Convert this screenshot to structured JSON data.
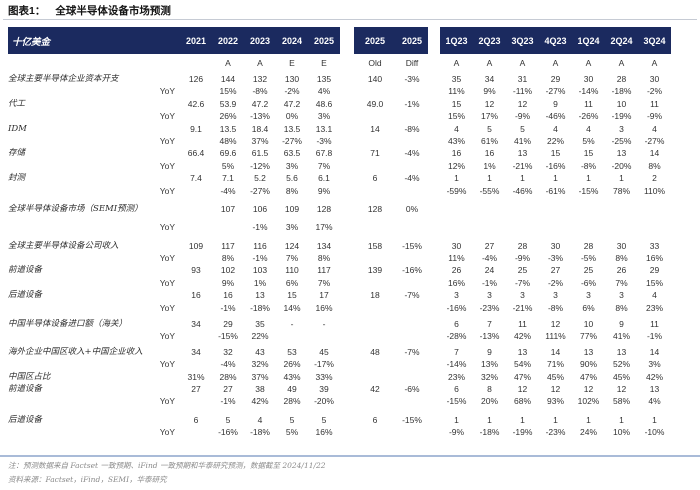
{
  "title": {
    "prefix": "图表1：",
    "text": "全球半导体设备市场预测"
  },
  "colors": {
    "navy": "#1b2a5f",
    "body_text": "#333333",
    "note_gray": "#8a8a8a",
    "rule_light": "#c6cbd4",
    "rule_blue": "#a9bbd8"
  },
  "header": {
    "unit_label": "十亿美金",
    "year_cols": [
      "2021",
      "2022",
      "2023",
      "2024",
      "2025"
    ],
    "year_sub": [
      "",
      "A",
      "A",
      "E",
      "E"
    ],
    "old_cols": [
      "2025",
      "2025"
    ],
    "old_sub": [
      "Old",
      "Diff"
    ],
    "quarter_cols": [
      "1Q23",
      "2Q23",
      "3Q23",
      "4Q23",
      "1Q24",
      "2Q24",
      "3Q24"
    ],
    "quarter_sub": [
      "A",
      "A",
      "A",
      "A",
      "A",
      "A",
      "A"
    ]
  },
  "rows": [
    {
      "label": "全球主要半导体企业资本开支",
      "yoy": false,
      "mt": 0,
      "y": [
        "126",
        "144",
        "132",
        "130",
        "135"
      ],
      "od": [
        "140",
        "-3%"
      ],
      "q": [
        "35",
        "34",
        "31",
        "29",
        "30",
        "28",
        "30"
      ]
    },
    {
      "label": "YoY",
      "yoy": true,
      "mt": 0,
      "y": [
        "",
        "15%",
        "-8%",
        "-2%",
        "4%"
      ],
      "od": [
        "",
        ""
      ],
      "q": [
        "11%",
        "9%",
        "-11%",
        "-27%",
        "-14%",
        "-18%",
        "-2%"
      ]
    },
    {
      "label": "代工",
      "yoy": false,
      "mt": 0,
      "y": [
        "42.6",
        "53.9",
        "47.2",
        "47.2",
        "48.6"
      ],
      "od": [
        "49.0",
        "-1%"
      ],
      "q": [
        "15",
        "12",
        "12",
        "9",
        "11",
        "10",
        "11"
      ]
    },
    {
      "label": "YoY",
      "yoy": true,
      "mt": 0,
      "y": [
        "",
        "26%",
        "-13%",
        "0%",
        "3%"
      ],
      "od": [
        "",
        ""
      ],
      "q": [
        "15%",
        "17%",
        "-9%",
        "-46%",
        "-26%",
        "-19%",
        "-9%"
      ]
    },
    {
      "label": "IDM",
      "yoy": false,
      "mt": 0,
      "y": [
        "9.1",
        "13.5",
        "18.4",
        "13.5",
        "13.1"
      ],
      "od": [
        "14",
        "-8%"
      ],
      "q": [
        "4",
        "5",
        "5",
        "4",
        "4",
        "3",
        "4"
      ]
    },
    {
      "label": "YoY",
      "yoy": true,
      "mt": 0,
      "y": [
        "",
        "48%",
        "37%",
        "-27%",
        "-3%"
      ],
      "od": [
        "",
        ""
      ],
      "q": [
        "43%",
        "61%",
        "41%",
        "22%",
        "5%",
        "-25%",
        "-27%"
      ]
    },
    {
      "label": "存储",
      "yoy": false,
      "mt": 0,
      "y": [
        "66.4",
        "69.6",
        "61.5",
        "63.5",
        "67.8"
      ],
      "od": [
        "71",
        "-4%"
      ],
      "q": [
        "16",
        "16",
        "13",
        "15",
        "15",
        "13",
        "14"
      ]
    },
    {
      "label": "YoY",
      "yoy": true,
      "mt": 0,
      "y": [
        "",
        "5%",
        "-12%",
        "3%",
        "7%"
      ],
      "od": [
        "",
        ""
      ],
      "q": [
        "12%",
        "1%",
        "-21%",
        "-16%",
        "-8%",
        "-20%",
        "8%"
      ]
    },
    {
      "label": "封测",
      "yoy": false,
      "mt": 0,
      "y": [
        "7.4",
        "7.1",
        "5.2",
        "5.6",
        "6.1"
      ],
      "od": [
        "6",
        "-4%"
      ],
      "q": [
        "1",
        "1",
        "1",
        "1",
        "1",
        "1",
        "2"
      ]
    },
    {
      "label": "YoY",
      "yoy": true,
      "mt": 0,
      "y": [
        "",
        "-4%",
        "-27%",
        "8%",
        "9%"
      ],
      "od": [
        "",
        ""
      ],
      "q": [
        "-59%",
        "-55%",
        "-46%",
        "-61%",
        "-15%",
        "78%",
        "110%"
      ]
    },
    {
      "label": "全球半导体设备市场（SEMI预测）",
      "yoy": false,
      "mt": 6,
      "y": [
        "",
        "107",
        "106",
        "109",
        "128"
      ],
      "od": [
        "128",
        "0%"
      ],
      "q": [
        "",
        "",
        "",
        "",
        "",
        "",
        ""
      ]
    },
    {
      "label": "YoY",
      "yoy": true,
      "mt": 6,
      "y": [
        "",
        "",
        "-1%",
        "3%",
        "17%"
      ],
      "od": [
        "",
        ""
      ],
      "q": [
        "",
        "",
        "",
        "",
        "",
        "",
        ""
      ]
    },
    {
      "label": "全球主要半导体设备公司收入",
      "yoy": false,
      "mt": 6,
      "y": [
        "109",
        "117",
        "116",
        "124",
        "134"
      ],
      "od": [
        "158",
        "-15%"
      ],
      "q": [
        "30",
        "27",
        "28",
        "30",
        "28",
        "30",
        "33"
      ]
    },
    {
      "label": "YoY",
      "yoy": true,
      "mt": 0,
      "y": [
        "",
        "8%",
        "-1%",
        "7%",
        "8%"
      ],
      "od": [
        "",
        ""
      ],
      "q": [
        "11%",
        "-4%",
        "-9%",
        "-3%",
        "-5%",
        "8%",
        "16%"
      ]
    },
    {
      "label": "前道设备",
      "yoy": false,
      "mt": 0,
      "y": [
        "93",
        "102",
        "103",
        "110",
        "117"
      ],
      "od": [
        "139",
        "-16%"
      ],
      "q": [
        "26",
        "24",
        "25",
        "27",
        "25",
        "26",
        "29"
      ]
    },
    {
      "label": "YoY",
      "yoy": true,
      "mt": 0,
      "y": [
        "",
        "9%",
        "1%",
        "6%",
        "7%"
      ],
      "od": [
        "",
        ""
      ],
      "q": [
        "16%",
        "-1%",
        "-7%",
        "-2%",
        "-6%",
        "7%",
        "15%"
      ]
    },
    {
      "label": "后道设备",
      "yoy": false,
      "mt": 0,
      "y": [
        "16",
        "16",
        "13",
        "15",
        "17"
      ],
      "od": [
        "18",
        "-7%"
      ],
      "q": [
        "3",
        "3",
        "3",
        "3",
        "3",
        "3",
        "4"
      ]
    },
    {
      "label": "YoY",
      "yoy": true,
      "mt": 0,
      "y": [
        "",
        "-1%",
        "-18%",
        "14%",
        "16%"
      ],
      "od": [
        "",
        ""
      ],
      "q": [
        "-16%",
        "-23%",
        "-21%",
        "-8%",
        "6%",
        "8%",
        "23%"
      ]
    },
    {
      "label": "中国半导体设备进口额（海关）",
      "yoy": false,
      "mt": 4,
      "y": [
        "34",
        "29",
        "35",
        "-",
        "-"
      ],
      "od": [
        "",
        ""
      ],
      "q": [
        "6",
        "7",
        "11",
        "12",
        "10",
        "9",
        "11"
      ]
    },
    {
      "label": "YoY",
      "yoy": true,
      "mt": 0,
      "y": [
        "",
        "-15%",
        "22%",
        "",
        ""
      ],
      "od": [
        "",
        ""
      ],
      "q": [
        "-28%",
        "-13%",
        "42%",
        "111%",
        "77%",
        "41%",
        "-1%"
      ]
    },
    {
      "label": "海外企业中国区收入+中国企业收入",
      "yoy": false,
      "mt": 3,
      "y": [
        "34",
        "32",
        "43",
        "53",
        "45"
      ],
      "od": [
        "48",
        "-7%"
      ],
      "q": [
        "7",
        "9",
        "13",
        "14",
        "13",
        "13",
        "14"
      ]
    },
    {
      "label": "YoY",
      "yoy": true,
      "mt": 0,
      "y": [
        "",
        "-4%",
        "32%",
        "26%",
        "-17%"
      ],
      "od": [
        "",
        ""
      ],
      "q": [
        "-14%",
        "13%",
        "54%",
        "71%",
        "90%",
        "52%",
        "3%"
      ]
    },
    {
      "label": "中国区占比",
      "yoy": false,
      "mt": 0,
      "y": [
        "31%",
        "28%",
        "37%",
        "43%",
        "33%"
      ],
      "od": [
        "",
        ""
      ],
      "q": [
        "23%",
        "32%",
        "47%",
        "45%",
        "47%",
        "45%",
        "42%"
      ]
    },
    {
      "label": "前道设备",
      "yoy": false,
      "mt": 0,
      "y": [
        "27",
        "27",
        "38",
        "49",
        "39"
      ],
      "od": [
        "42",
        "-6%"
      ],
      "q": [
        "6",
        "8",
        "12",
        "12",
        "12",
        "12",
        "13"
      ]
    },
    {
      "label": "YoY",
      "yoy": true,
      "mt": 0,
      "y": [
        "",
        "-1%",
        "42%",
        "28%",
        "-20%"
      ],
      "od": [
        "",
        ""
      ],
      "q": [
        "-15%",
        "20%",
        "68%",
        "93%",
        "102%",
        "58%",
        "4%"
      ]
    },
    {
      "label": "后道设备",
      "yoy": false,
      "mt": 6,
      "y": [
        "6",
        "5",
        "4",
        "5",
        "5"
      ],
      "od": [
        "6",
        "-15%"
      ],
      "q": [
        "1",
        "1",
        "1",
        "1",
        "1",
        "1",
        "1"
      ]
    },
    {
      "label": "YoY",
      "yoy": true,
      "mt": 0,
      "y": [
        "",
        "-16%",
        "-18%",
        "5%",
        "16%"
      ],
      "od": [
        "",
        ""
      ],
      "q": [
        "-9%",
        "-18%",
        "-19%",
        "-23%",
        "24%",
        "10%",
        "-10%"
      ]
    }
  ],
  "footnotes": {
    "note1": "注：预测数据来自 Factset 一致预期、iFind 一致预期和华泰研究预测，数据截至 2024/11/22",
    "note2": "资料来源：Factset，iFind，SEMI，华泰研究"
  }
}
